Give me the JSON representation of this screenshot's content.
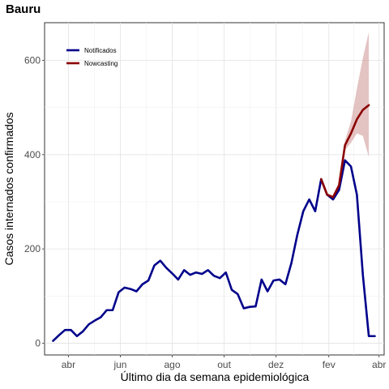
{
  "chart_data": {
    "type": "line",
    "title": "Bauru",
    "xlabel": "Último dia da semana epidemiológica",
    "ylabel": "Casos internados confirmados",
    "x_ticks": [
      "abr",
      "jun",
      "ago",
      "out",
      "dez",
      "fev",
      "abr"
    ],
    "y_ticks": [
      0,
      200,
      400,
      600
    ],
    "ylim": [
      -25,
      680
    ],
    "grid": true,
    "legend_position": "top-left",
    "series": [
      {
        "name": "Notificados",
        "color": "#00008B",
        "x": [
          "2020-03-14",
          "2020-03-21",
          "2020-03-28",
          "2020-04-04",
          "2020-04-11",
          "2020-04-18",
          "2020-04-25",
          "2020-05-02",
          "2020-05-09",
          "2020-05-16",
          "2020-05-23",
          "2020-05-30",
          "2020-06-06",
          "2020-06-13",
          "2020-06-20",
          "2020-06-27",
          "2020-07-04",
          "2020-07-11",
          "2020-07-18",
          "2020-07-25",
          "2020-08-01",
          "2020-08-08",
          "2020-08-15",
          "2020-08-22",
          "2020-08-29",
          "2020-09-05",
          "2020-09-12",
          "2020-09-19",
          "2020-09-26",
          "2020-10-03",
          "2020-10-10",
          "2020-10-17",
          "2020-10-24",
          "2020-10-31",
          "2020-11-07",
          "2020-11-14",
          "2020-11-21",
          "2020-11-28",
          "2020-12-05",
          "2020-12-12",
          "2020-12-19",
          "2020-12-26",
          "2021-01-02",
          "2021-01-09",
          "2021-01-16",
          "2021-01-23",
          "2021-01-30",
          "2021-02-06",
          "2021-02-13",
          "2021-02-20",
          "2021-02-27",
          "2021-03-06",
          "2021-03-13",
          "2021-03-20",
          "2021-03-27"
        ],
        "values": [
          5,
          17,
          28,
          28,
          15,
          25,
          40,
          48,
          55,
          70,
          70,
          108,
          118,
          115,
          110,
          125,
          133,
          165,
          175,
          160,
          148,
          135,
          155,
          145,
          150,
          147,
          155,
          143,
          138,
          150,
          113,
          104,
          74,
          77,
          78,
          135,
          110,
          133,
          135,
          125,
          170,
          230,
          280,
          305,
          280,
          348,
          315,
          305,
          325,
          388,
          375,
          315,
          145,
          15,
          15
        ]
      },
      {
        "name": "Nowcasting",
        "color": "#8B0000",
        "x": [
          "2021-01-23",
          "2021-01-30",
          "2021-02-06",
          "2021-02-13",
          "2021-02-20",
          "2021-02-27",
          "2021-03-06",
          "2021-03-13",
          "2021-03-20"
        ],
        "values": [
          348,
          315,
          310,
          335,
          420,
          445,
          475,
          495,
          505
        ],
        "lower": [
          348,
          315,
          310,
          335,
          410,
          425,
          445,
          440,
          395
        ],
        "upper": [
          348,
          315,
          310,
          335,
          430,
          470,
          540,
          605,
          660
        ]
      }
    ]
  }
}
